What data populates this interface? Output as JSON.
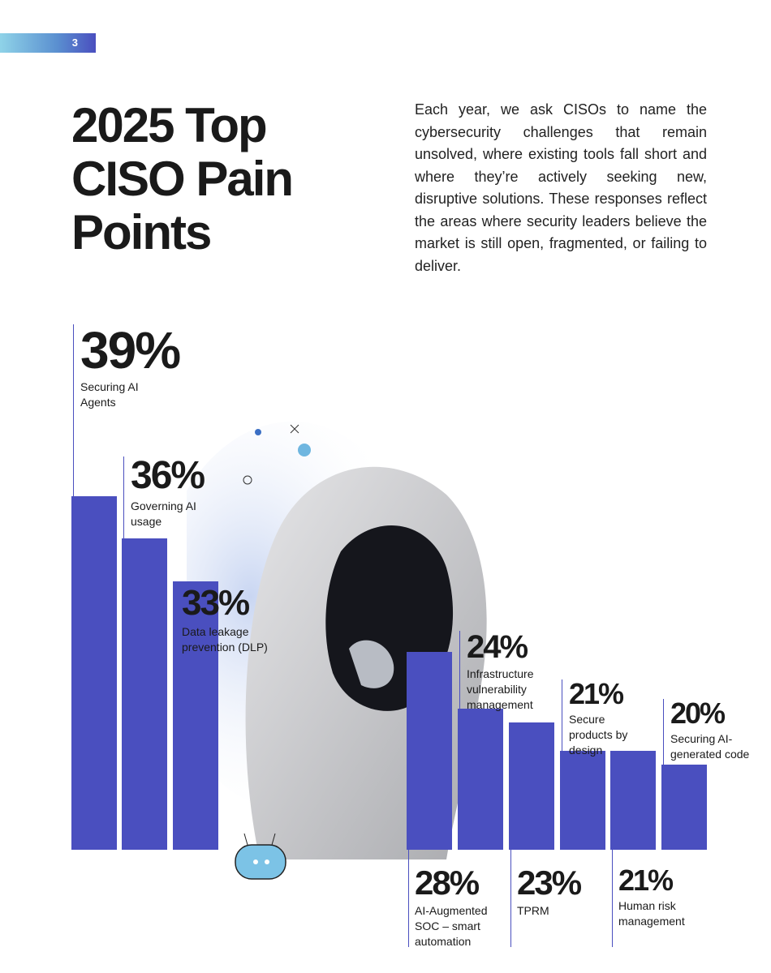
{
  "page_number": "3",
  "title": "2025 Top CISO Pain Points",
  "description": "Each year, we ask CISOs to name the cybersecurity challenges that remain unsolved, where existing tools fall short and where they’re actively seeking new, disruptive solutions. These responses reflect the areas where security leaders believe the market is still open, fragmented, or failing to deliver.",
  "chart_data": {
    "type": "bar",
    "categories": [
      "Securing AI Agents",
      "Governing AI usage",
      "Data leakage prevention (DLP)",
      "AI-Augmented SOC – smart automation",
      "Infrastructure vulnerability management",
      "TPRM",
      "Secure products by design",
      "Human risk management",
      "Securing AI-generated code"
    ],
    "values": [
      39,
      36,
      33,
      28,
      24,
      23,
      21,
      21,
      20
    ],
    "value_labels": [
      "39%",
      "36%",
      "33%",
      "28%",
      "24%",
      "23%",
      "21%",
      "21%",
      "20%"
    ],
    "color": "#4a4fbf",
    "ylim": [
      14,
      39
    ]
  }
}
